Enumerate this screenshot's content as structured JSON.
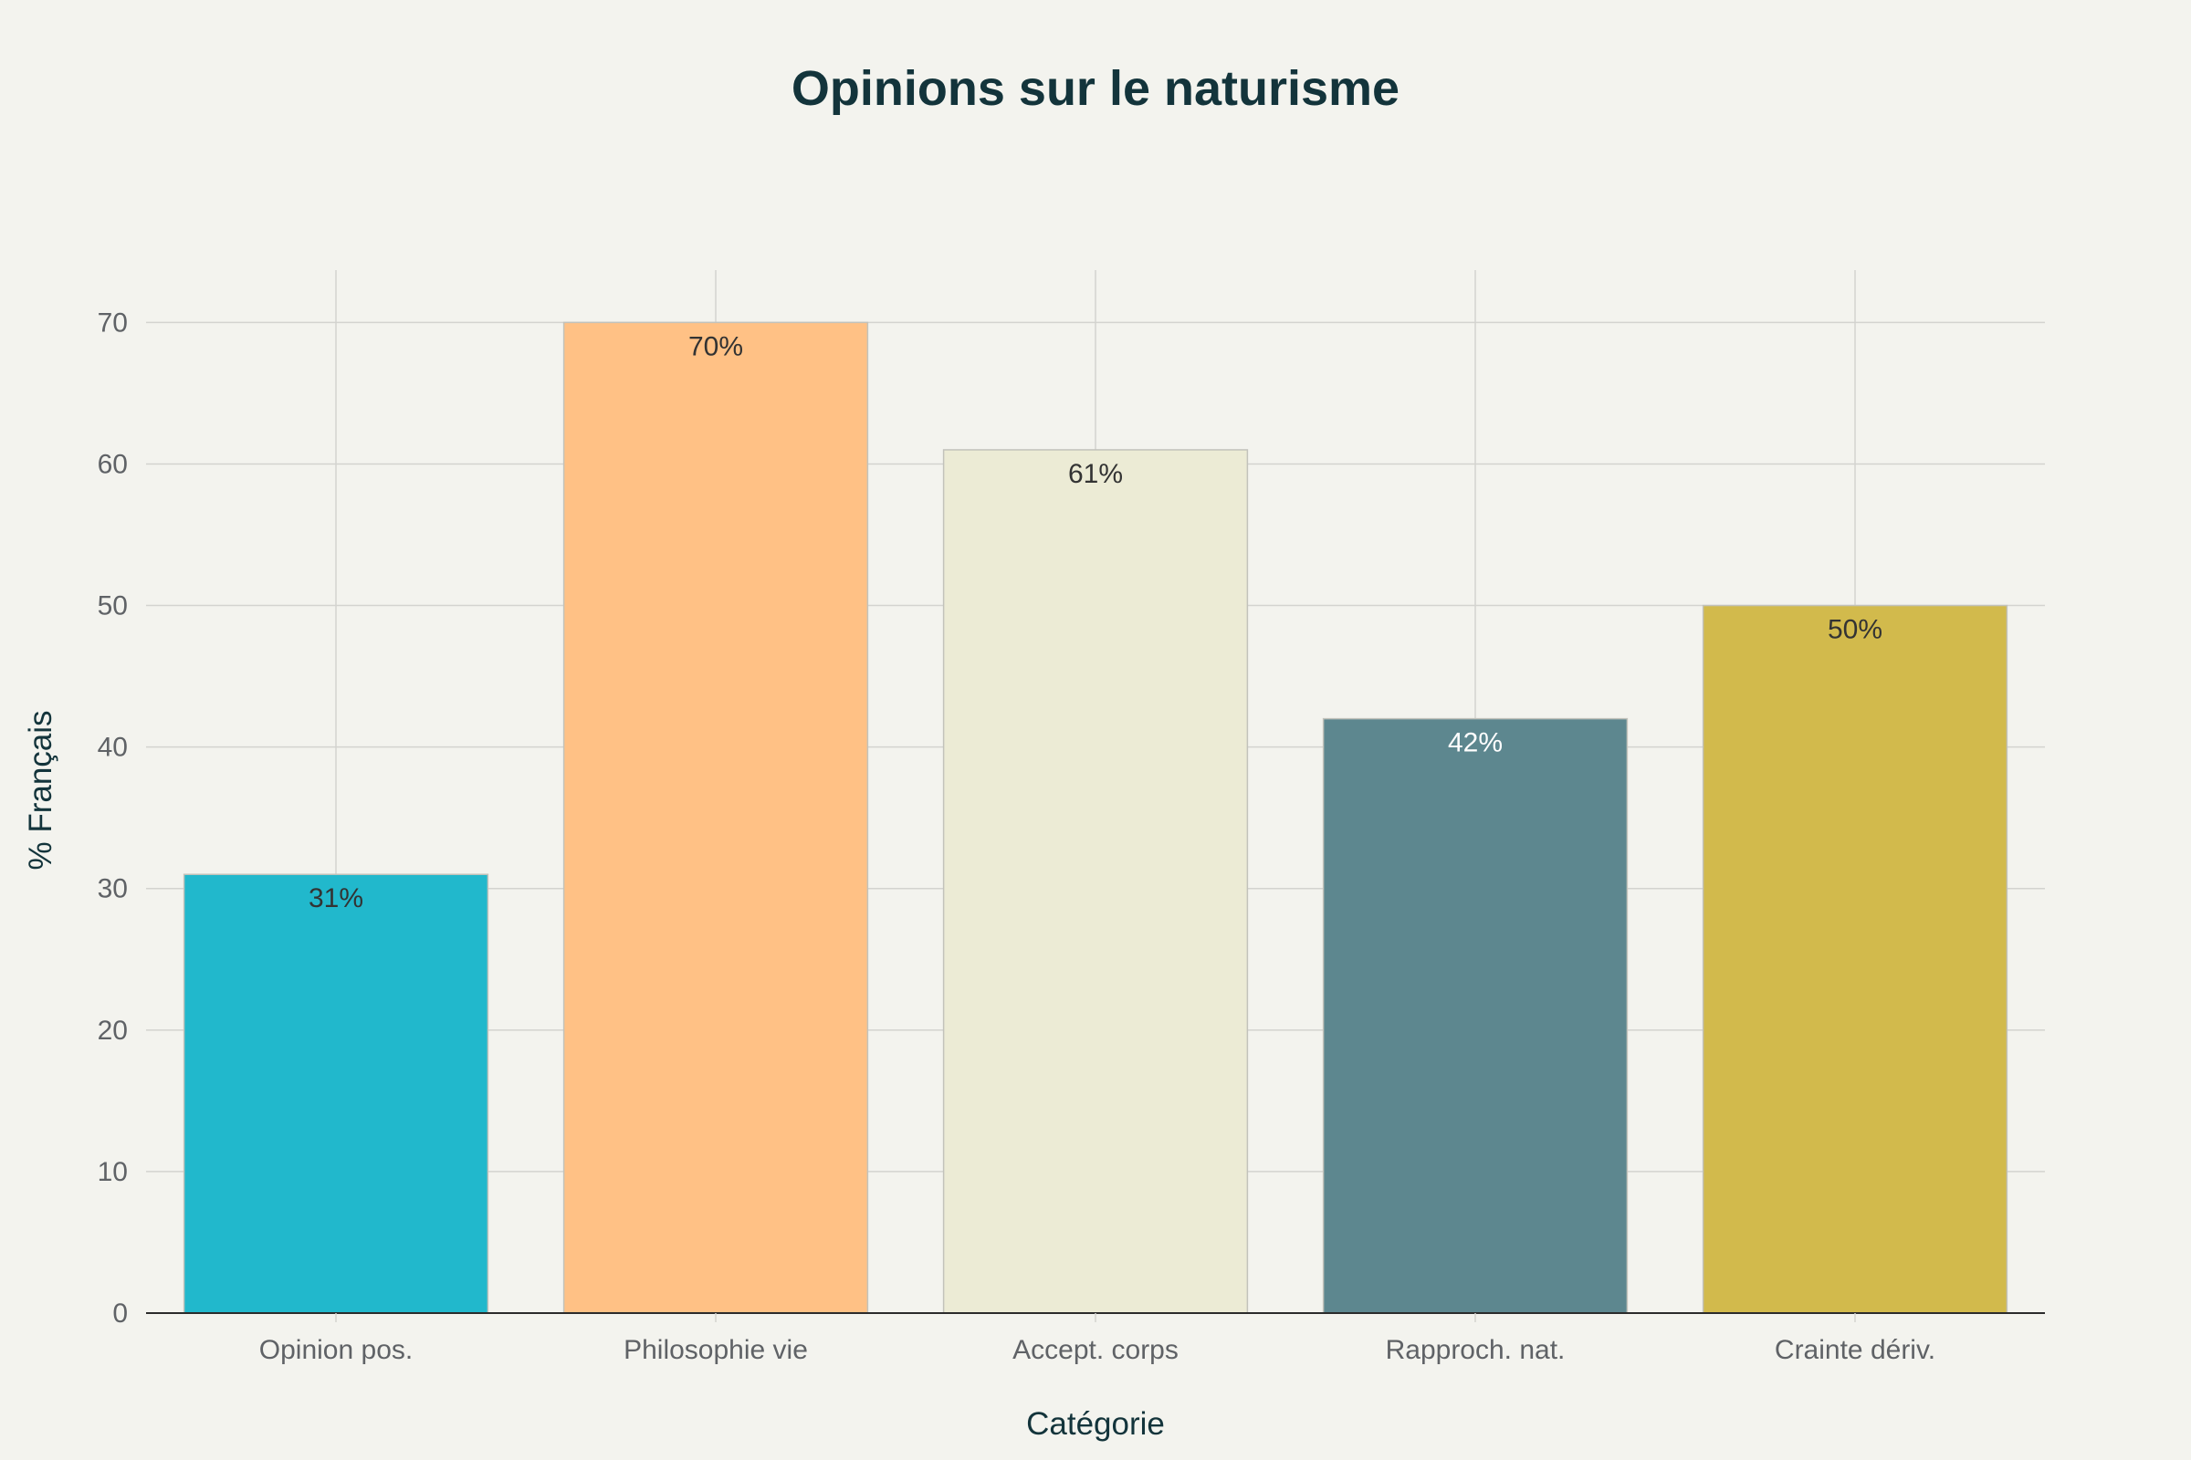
{
  "chart_data": {
    "type": "bar",
    "title": "Opinions sur le naturisme",
    "xlabel": "Catégorie",
    "ylabel": "% Français",
    "categories": [
      "Opinion pos.",
      "Philosophie vie",
      "Accept. corps",
      "Rapproch. nat.",
      "Crainte dériv."
    ],
    "values": [
      31,
      70,
      61,
      42,
      50
    ],
    "value_labels": [
      "31%",
      "70%",
      "61%",
      "42%",
      "50%"
    ],
    "colors": [
      "#21b8cc",
      "#ffc185",
      "#ecebd5",
      "#5d878f",
      "#d2ba4c"
    ],
    "label_colors": [
      "#333333",
      "#333333",
      "#333333",
      "#ffffff",
      "#333333"
    ],
    "ylim": [
      0,
      73.7
    ],
    "yticks": [
      0,
      10,
      20,
      30,
      40,
      50,
      60,
      70
    ],
    "grid": true
  }
}
